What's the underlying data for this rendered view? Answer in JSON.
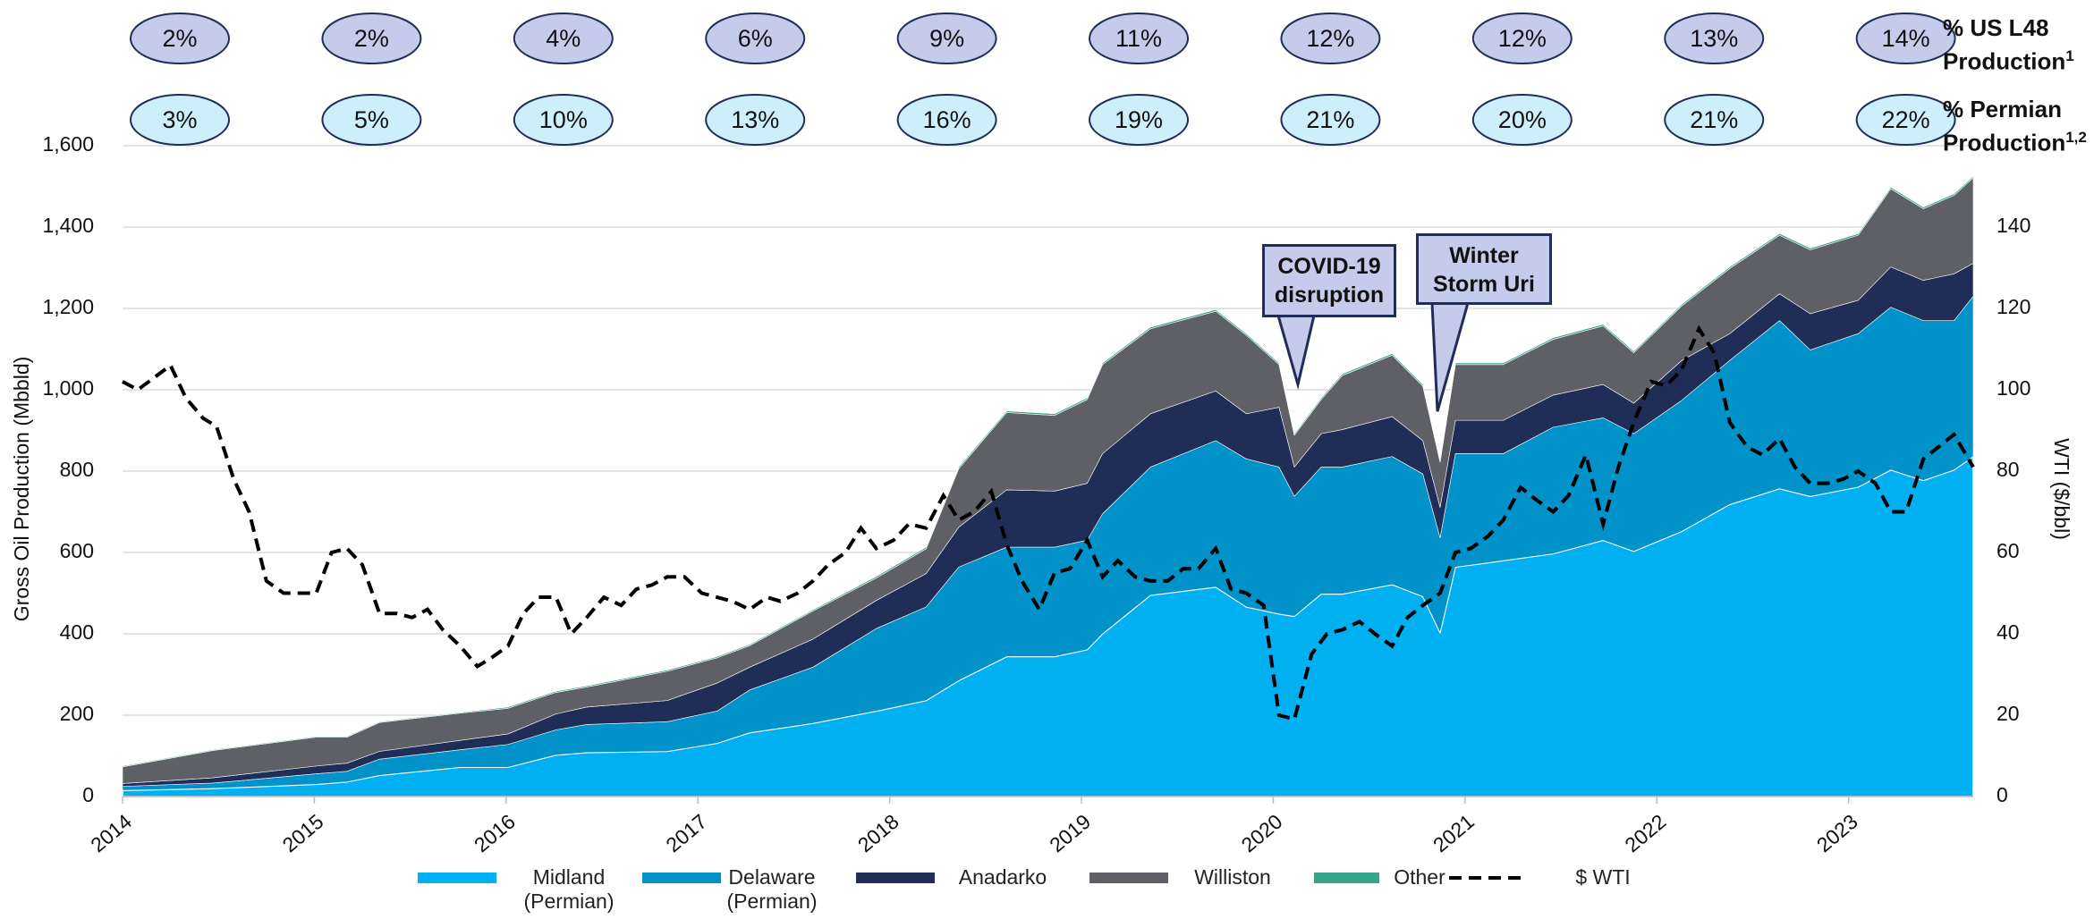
{
  "chart_data": {
    "type": "stacked_area",
    "ylabel": "Gross Oil Production  (Mbbld)",
    "y2label": "WTI ($/bbl)",
    "xlim": [
      2014,
      2023.65
    ],
    "xticks": [
      2014,
      2015,
      2016,
      2017,
      2018,
      2019,
      2020,
      2021,
      2022,
      2023
    ],
    "ylim": [
      0,
      1600
    ],
    "yticks": [
      0,
      200,
      400,
      600,
      800,
      {
        "value": 1000,
        "label": "1,000"
      },
      {
        "value": 1200,
        "label": "1,200"
      },
      {
        "value": 1400,
        "label": "1,400"
      },
      {
        "value": 1600,
        "label": "1,600"
      }
    ],
    "y2lim": [
      0,
      160
    ],
    "y2ticks": [
      0,
      20,
      40,
      60,
      80,
      100,
      120,
      140
    ],
    "grid": true,
    "legend": "bottom",
    "x": [
      2014.0,
      2014.47,
      2015.01,
      2015.17,
      2015.34,
      2015.76,
      2016.01,
      2016.26,
      2016.42,
      2016.84,
      2017.1,
      2017.27,
      2017.6,
      2017.93,
      2018.19,
      2018.36,
      2018.61,
      2018.86,
      2019.03,
      2019.11,
      2019.36,
      2019.7,
      2019.86,
      2020.03,
      2020.11,
      2020.25,
      2020.36,
      2020.62,
      2020.78,
      2020.87,
      2020.95,
      2021.2,
      2021.46,
      2021.72,
      2021.88,
      2022.13,
      2022.38,
      2022.64,
      2022.8,
      2023.05,
      2023.22,
      2023.39,
      2023.55,
      2023.65
    ],
    "series": [
      {
        "name": "Midland (Permian)",
        "color": "#00b0f0",
        "values": [
          15,
          20,
          30,
          36,
          52,
          72,
          72,
          102,
          108,
          111,
          131,
          157,
          180,
          210,
          236,
          285,
          344,
          344,
          361,
          400,
          495,
          515,
          466,
          449,
          443,
          498,
          498,
          521,
          492,
          403,
          564,
          580,
          597,
          630,
          603,
          652,
          718,
          757,
          738,
          761,
          803,
          777,
          803,
          836
        ]
      },
      {
        "name": "Delaware (Permian)",
        "color": "#0092c8",
        "values": [
          10,
          13,
          26,
          26,
          40,
          43,
          56,
          62,
          69,
          73,
          79,
          105,
          138,
          203,
          230,
          279,
          269,
          269,
          269,
          295,
          315,
          360,
          364,
          361,
          295,
          312,
          312,
          315,
          301,
          233,
          279,
          263,
          311,
          301,
          289,
          322,
          354,
          413,
          360,
          377,
          400,
          393,
          367,
          394
        ]
      },
      {
        "name": "Anadarko",
        "color": "#1f2d57",
        "values": [
          7,
          13,
          19,
          20,
          19,
          23,
          26,
          39,
          43,
          52,
          69,
          56,
          69,
          69,
          82,
          98,
          141,
          138,
          140,
          148,
          131,
          122,
          111,
          147,
          72,
          82,
          92,
          98,
          82,
          75,
          82,
          82,
          79,
          82,
          75,
          98,
          66,
          66,
          89,
          82,
          99,
          99,
          115,
          81
        ]
      },
      {
        "name": "Williston",
        "color": "#5f6066",
        "values": [
          41,
          67,
          71,
          64,
          71,
          67,
          63,
          53,
          49,
          72,
          62,
          53,
          69,
          55,
          61,
          144,
          190,
          186,
          206,
          219,
          209,
          196,
          193,
          105,
          78,
          84,
          133,
          151,
          134,
          111,
          137,
          137,
          137,
          144,
          124,
          134,
          160,
          144,
          157,
          160,
          192,
          176,
          193,
          210
        ]
      },
      {
        "name": "Other",
        "color": "#35a488",
        "values": [
          2,
          2,
          2,
          2,
          2,
          2,
          3,
          3,
          3,
          3,
          3,
          3,
          3,
          4,
          4,
          4,
          4,
          4,
          4,
          4,
          4,
          4,
          4,
          4,
          4,
          4,
          4,
          4,
          4,
          4,
          4,
          4,
          4,
          4,
          4,
          4,
          4,
          4,
          4,
          4,
          4,
          4,
          4,
          4
        ]
      },
      {
        "name": "$ WTI",
        "color": "#000000",
        "axis": "y2",
        "style": "dashed",
        "x": [
          2014.0,
          2014.08,
          2014.25,
          2014.33,
          2014.42,
          2014.49,
          2014.58,
          2014.66,
          2014.75,
          2014.84,
          2015.01,
          2015.09,
          2015.17,
          2015.25,
          2015.34,
          2015.43,
          2015.51,
          2015.59,
          2015.67,
          2015.76,
          2015.85,
          2015.92,
          2016.01,
          2016.09,
          2016.17,
          2016.26,
          2016.34,
          2016.42,
          2016.51,
          2016.6,
          2016.68,
          2016.76,
          2016.84,
          2016.93,
          2017.02,
          2017.1,
          2017.18,
          2017.27,
          2017.36,
          2017.43,
          2017.52,
          2017.6,
          2017.68,
          2017.77,
          2017.85,
          2017.93,
          2018.02,
          2018.1,
          2018.19,
          2018.28,
          2018.36,
          2018.44,
          2018.53,
          2018.61,
          2018.69,
          2018.78,
          2018.86,
          2018.94,
          2019.03,
          2019.11,
          2019.19,
          2019.28,
          2019.36,
          2019.45,
          2019.53,
          2019.61,
          2019.7,
          2019.78,
          2019.86,
          2019.95,
          2020.03,
          2020.11,
          2020.2,
          2020.28,
          2020.36,
          2020.45,
          2020.53,
          2020.62,
          2020.7,
          2020.78,
          2020.87,
          2020.95,
          2021.03,
          2021.12,
          2021.2,
          2021.29,
          2021.37,
          2021.46,
          2021.54,
          2021.63,
          2021.72,
          2021.8,
          2021.88,
          2021.97,
          2022.05,
          2022.13,
          2022.22,
          2022.3,
          2022.38,
          2022.47,
          2022.55,
          2022.64,
          2022.72,
          2022.8,
          2022.89,
          2022.97,
          2023.05,
          2023.14,
          2023.22,
          2023.3,
          2023.39,
          2023.47,
          2023.55,
          2023.65
        ],
        "values": [
          102,
          100,
          106,
          98,
          93,
          91,
          78,
          70,
          53,
          50,
          50,
          60,
          61,
          57,
          45,
          45,
          44,
          46,
          41,
          37,
          32,
          34,
          37,
          45,
          49,
          49,
          40,
          44,
          49,
          47,
          51,
          52,
          54,
          54,
          50,
          49,
          48,
          46,
          49,
          48,
          50,
          53,
          57,
          60,
          66,
          61,
          63,
          67,
          66,
          74,
          68,
          70,
          75,
          62,
          53,
          46,
          55,
          56,
          63,
          54,
          58,
          54,
          53,
          53,
          56,
          56,
          61,
          51,
          50,
          47,
          20,
          19,
          35,
          40,
          41,
          43,
          40,
          37,
          44,
          47,
          50,
          60,
          61,
          64,
          68,
          76,
          73,
          70,
          74,
          84,
          67,
          81,
          92,
          102,
          101,
          105,
          115,
          109,
          92,
          86,
          84,
          88,
          81,
          77,
          77,
          78,
          80,
          77,
          70,
          70,
          83,
          86,
          89,
          81
        ]
      }
    ],
    "annotations": [
      {
        "text": "COVID-19 disruption",
        "x": 2020.11
      },
      {
        "text": "Winter Storm Uri",
        "x": 2020.87
      }
    ],
    "share_rows": [
      {
        "label": "% US L48 Production",
        "superscript": "1",
        "color": "#c5cbea",
        "values": [
          2,
          2,
          4,
          6,
          9,
          11,
          12,
          12,
          13,
          14
        ],
        "value_labels": [
          "2%",
          "2%",
          "4%",
          "6%",
          "9%",
          "11%",
          "12%",
          "12%",
          "13%",
          "14%"
        ]
      },
      {
        "label": "% Permian Production",
        "superscript": "1,2",
        "color": "#cdeffc",
        "values": [
          3,
          5,
          10,
          13,
          16,
          19,
          21,
          20,
          21,
          22
        ],
        "value_labels": [
          "3%",
          "5%",
          "10%",
          "13%",
          "16%",
          "19%",
          "21%",
          "20%",
          "21%",
          "22%"
        ]
      }
    ]
  }
}
